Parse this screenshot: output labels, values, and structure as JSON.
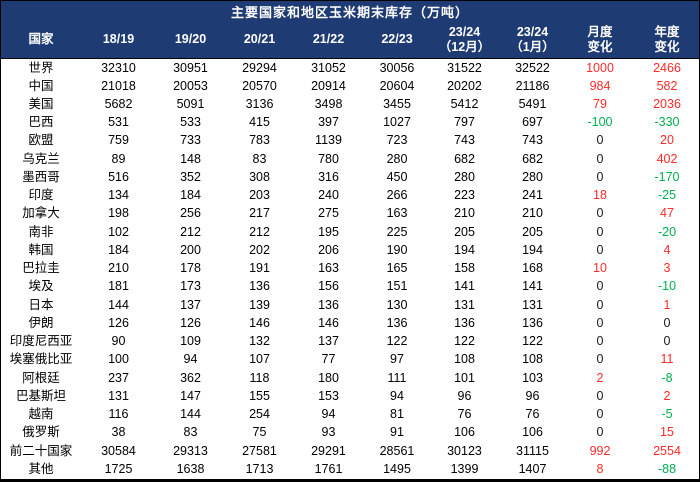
{
  "chart_data": {
    "type": "table",
    "title": "主要国家和地区玉米期末库存（万吨）",
    "columns": [
      {
        "lines": [
          "国家"
        ]
      },
      {
        "lines": [
          "18/19"
        ]
      },
      {
        "lines": [
          "19/20"
        ]
      },
      {
        "lines": [
          "20/21"
        ]
      },
      {
        "lines": [
          "21/22"
        ]
      },
      {
        "lines": [
          "22/23"
        ]
      },
      {
        "lines": [
          "23/24",
          "（12月）"
        ]
      },
      {
        "lines": [
          "23/24",
          "（1月）"
        ]
      },
      {
        "lines": [
          "月度",
          "变化"
        ]
      },
      {
        "lines": [
          "年度",
          "变化"
        ]
      }
    ],
    "rows": [
      {
        "country": "世界",
        "values": [
          "32310",
          "30951",
          "29294",
          "31052",
          "30056",
          "31522",
          "32522"
        ],
        "monthly": "1000",
        "yearly": "2466"
      },
      {
        "country": "中国",
        "values": [
          "21018",
          "20053",
          "20570",
          "20914",
          "20604",
          "20202",
          "21186"
        ],
        "monthly": "984",
        "yearly": "582"
      },
      {
        "country": "美国",
        "values": [
          "5682",
          "5091",
          "3136",
          "3498",
          "3455",
          "5412",
          "5491"
        ],
        "monthly": "79",
        "yearly": "2036"
      },
      {
        "country": "巴西",
        "values": [
          "531",
          "533",
          "415",
          "397",
          "1027",
          "797",
          "697"
        ],
        "monthly": "-100",
        "yearly": "-330"
      },
      {
        "country": "欧盟",
        "values": [
          "759",
          "733",
          "783",
          "1139",
          "723",
          "743",
          "743"
        ],
        "monthly": "0",
        "yearly": "20"
      },
      {
        "country": "乌克兰",
        "values": [
          "89",
          "148",
          "83",
          "780",
          "280",
          "682",
          "682"
        ],
        "monthly": "0",
        "yearly": "402"
      },
      {
        "country": "墨西哥",
        "values": [
          "516",
          "352",
          "308",
          "316",
          "450",
          "280",
          "280"
        ],
        "monthly": "0",
        "yearly": "-170"
      },
      {
        "country": "印度",
        "values": [
          "134",
          "184",
          "203",
          "240",
          "266",
          "223",
          "241"
        ],
        "monthly": "18",
        "yearly": "-25"
      },
      {
        "country": "加拿大",
        "values": [
          "198",
          "256",
          "217",
          "275",
          "163",
          "210",
          "210"
        ],
        "monthly": "0",
        "yearly": "47"
      },
      {
        "country": "南非",
        "values": [
          "102",
          "212",
          "212",
          "195",
          "225",
          "205",
          "205"
        ],
        "monthly": "0",
        "yearly": "-20"
      },
      {
        "country": "韩国",
        "values": [
          "184",
          "200",
          "202",
          "206",
          "190",
          "194",
          "194"
        ],
        "monthly": "0",
        "yearly": "4"
      },
      {
        "country": "巴拉圭",
        "values": [
          "210",
          "178",
          "191",
          "163",
          "165",
          "158",
          "168"
        ],
        "monthly": "10",
        "yearly": "3"
      },
      {
        "country": "埃及",
        "values": [
          "181",
          "173",
          "136",
          "156",
          "151",
          "141",
          "141"
        ],
        "monthly": "0",
        "yearly": "-10"
      },
      {
        "country": "日本",
        "values": [
          "144",
          "137",
          "139",
          "136",
          "130",
          "131",
          "131"
        ],
        "monthly": "0",
        "yearly": "1"
      },
      {
        "country": "伊朗",
        "values": [
          "126",
          "126",
          "146",
          "146",
          "136",
          "136",
          "136"
        ],
        "monthly": "0",
        "yearly": "0"
      },
      {
        "country": "印度尼西亚",
        "values": [
          "90",
          "109",
          "132",
          "137",
          "122",
          "122",
          "122"
        ],
        "monthly": "0",
        "yearly": "0"
      },
      {
        "country": "埃塞俄比亚",
        "values": [
          "100",
          "94",
          "107",
          "77",
          "97",
          "108",
          "108"
        ],
        "monthly": "0",
        "yearly": "11"
      },
      {
        "country": "阿根廷",
        "values": [
          "237",
          "362",
          "118",
          "180",
          "111",
          "101",
          "103"
        ],
        "monthly": "2",
        "yearly": "-8"
      },
      {
        "country": "巴基斯坦",
        "values": [
          "131",
          "147",
          "155",
          "153",
          "94",
          "96",
          "96"
        ],
        "monthly": "0",
        "yearly": "2"
      },
      {
        "country": "越南",
        "values": [
          "116",
          "144",
          "254",
          "94",
          "81",
          "76",
          "76"
        ],
        "monthly": "0",
        "yearly": "-5"
      },
      {
        "country": "俄罗斯",
        "values": [
          "38",
          "83",
          "75",
          "93",
          "91",
          "106",
          "106"
        ],
        "monthly": "0",
        "yearly": "15"
      },
      {
        "country": "前二十国家",
        "values": [
          "30584",
          "29313",
          "27581",
          "29291",
          "28561",
          "30123",
          "31115"
        ],
        "monthly": "992",
        "yearly": "2554"
      },
      {
        "country": "其他",
        "values": [
          "1725",
          "1638",
          "1713",
          "1761",
          "1495",
          "1399",
          "1407"
        ],
        "monthly": "8",
        "yearly": "-88"
      }
    ]
  },
  "colors": {
    "header_bg": "#1f3b73",
    "header_text": "#ffffff",
    "positive_change": "#ff2a2a",
    "negative_change": "#00b050",
    "neutral_change": "#1a1a1a",
    "body_text": "#000000",
    "border": "#000000"
  }
}
